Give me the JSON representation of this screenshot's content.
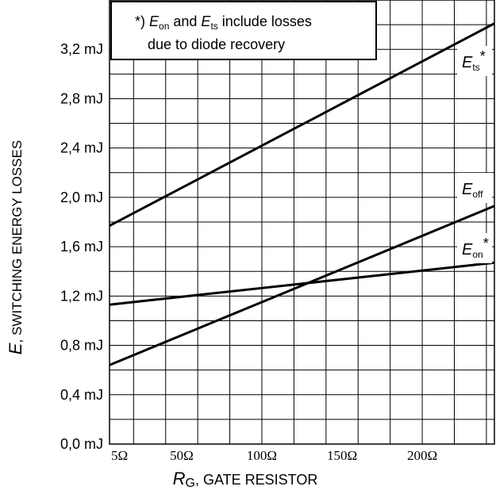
{
  "chart_data": {
    "type": "line",
    "xlabel": {
      "symbol": "R",
      "subscript": "G",
      "text": ", GATE RESISTOR"
    },
    "ylabel": {
      "symbol": "E",
      "text": ", SWITCHING ENERGY LOSSES"
    },
    "x_ticks": [
      "5Ω",
      "50Ω",
      "100Ω",
      "150Ω",
      "200Ω"
    ],
    "x_tick_values": [
      5,
      50,
      100,
      150,
      200
    ],
    "xlim": [
      5,
      245
    ],
    "y_ticks": [
      "0,0 mJ",
      "0,4 mJ",
      "0,8 mJ",
      "1,2 mJ",
      "1,6 mJ",
      "2,0 mJ",
      "2,4 mJ",
      "2,8 mJ",
      "3,2 mJ"
    ],
    "y_tick_values": [
      0.0,
      0.4,
      0.8,
      1.2,
      1.6,
      2.0,
      2.4,
      2.8,
      3.2
    ],
    "ylim": [
      0.0,
      3.6
    ],
    "grid": true,
    "series": [
      {
        "name": "Ets*",
        "symbol": "E",
        "subscript": "ts",
        "suffix": "*",
        "x": [
          5,
          245
        ],
        "y": [
          1.77,
          3.41
        ]
      },
      {
        "name": "Eoff",
        "symbol": "E",
        "subscript": "off",
        "suffix": "",
        "x": [
          5,
          245
        ],
        "y": [
          0.64,
          1.93
        ]
      },
      {
        "name": "Eon*",
        "symbol": "E",
        "subscript": "on",
        "suffix": "*",
        "x": [
          5,
          245
        ],
        "y": [
          1.13,
          1.47
        ]
      }
    ],
    "note": {
      "line1_prefix": "*) ",
      "sym1": "E",
      "sub1": "on",
      "mid": " and ",
      "sym2": "E",
      "sub2": "ts",
      "line1_suffix": " include losses",
      "line2": "due to diode recovery"
    }
  }
}
